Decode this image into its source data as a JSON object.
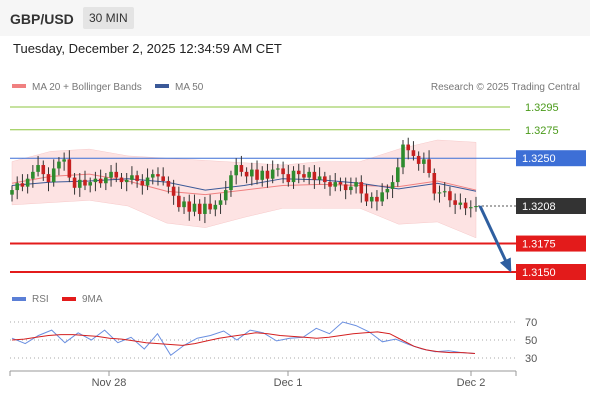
{
  "header": {
    "symbol": "GBP/USD",
    "timeframe": "30 MIN",
    "timestamp": "Tuesday, December 2, 2025 12:34:59 AM CET"
  },
  "legend": {
    "ma20": "MA 20 + Bollinger Bands",
    "ma50": "MA 50",
    "credit": "Research © 2025 Trading Central"
  },
  "rsi_legend": {
    "rsi": "RSI",
    "ma9": "9MA"
  },
  "colors": {
    "resistance": "#8dc63f",
    "pivot": "#3d6fd6",
    "support": "#e31b1b",
    "current": "#333333",
    "candle_up": "#2e8b2e",
    "candle_down": "#c62020",
    "bollinger": "#fde3e3",
    "ma20": "#f08080",
    "ma50": "#3b5998",
    "arrow": "#2f5fa0"
  },
  "chart_data": [
    {
      "type": "candlestick",
      "x_labels": [
        "Nov 28",
        "Dec 1",
        "Dec 2"
      ],
      "ylim": [
        1.3139,
        1.3307
      ],
      "levels": [
        {
          "value": 1.3295,
          "label": "1.3295",
          "kind": "resistance"
        },
        {
          "value": 1.3275,
          "label": "1.3275",
          "kind": "resistance"
        },
        {
          "value": 1.325,
          "label": "1.3250",
          "kind": "pivot"
        },
        {
          "value": 1.3208,
          "label": "1.3208",
          "kind": "current"
        },
        {
          "value": 1.3175,
          "label": "1.3175",
          "kind": "support"
        },
        {
          "value": 1.315,
          "label": "1.3150",
          "kind": "support"
        }
      ],
      "closes": [
        1.3222,
        1.3228,
        1.3225,
        1.3232,
        1.3238,
        1.3244,
        1.3236,
        1.3229,
        1.3241,
        1.3247,
        1.3249,
        1.3233,
        1.3224,
        1.3231,
        1.3226,
        1.3229,
        1.3232,
        1.3228,
        1.3233,
        1.3238,
        1.3233,
        1.3229,
        1.3231,
        1.3235,
        1.323,
        1.3226,
        1.3233,
        1.3236,
        1.3234,
        1.323,
        1.3225,
        1.3217,
        1.3207,
        1.3212,
        1.3203,
        1.321,
        1.3201,
        1.321,
        1.3205,
        1.3209,
        1.3213,
        1.3222,
        1.3235,
        1.3244,
        1.3238,
        1.3234,
        1.324,
        1.3231,
        1.3239,
        1.3232,
        1.324,
        1.3241,
        1.3236,
        1.3229,
        1.3239,
        1.3236,
        1.3233,
        1.3238,
        1.3231,
        1.3234,
        1.3229,
        1.3225,
        1.3229,
        1.3227,
        1.3222,
        1.3225,
        1.3229,
        1.3219,
        1.3212,
        1.3216,
        1.3212,
        1.322,
        1.3223,
        1.3229,
        1.3242,
        1.3262,
        1.3257,
        1.3252,
        1.3245,
        1.3249,
        1.3237,
        1.3219,
        1.322,
        1.3221,
        1.3213,
        1.3209,
        1.3211,
        1.3206,
        1.3207,
        1.3208
      ],
      "bollinger": {
        "upper": [
          1.3247,
          1.3256,
          1.3258,
          1.3252,
          1.325,
          1.3248,
          1.3246,
          1.3244,
          1.3247,
          1.3247,
          1.3258,
          1.3266,
          1.3264
        ],
        "lower": [
          1.3209,
          1.3211,
          1.3213,
          1.3208,
          1.3193,
          1.3189,
          1.3198,
          1.3206,
          1.3206,
          1.3206,
          1.3192,
          1.3194,
          1.318
        ]
      },
      "ma20": [
        1.3228,
        1.3234,
        1.3236,
        1.323,
        1.3221,
        1.3218,
        1.3222,
        1.3226,
        1.3227,
        1.3226,
        1.3225,
        1.323,
        1.3222
      ],
      "ma50": [
        1.3226,
        1.3229,
        1.323,
        1.3232,
        1.3229,
        1.3222,
        1.3226,
        1.3232,
        1.3231,
        1.3228,
        1.3223,
        1.3228,
        1.3221
      ],
      "forecast": {
        "from": 1.3208,
        "to": 1.315
      }
    },
    {
      "type": "line",
      "yticks": [
        70,
        50,
        30
      ],
      "ylim": [
        20,
        80
      ],
      "series": [
        {
          "name": "RSI",
          "values": [
            52,
            46,
            55,
            61,
            47,
            58,
            50,
            61,
            47,
            53,
            40,
            57,
            33,
            44,
            52,
            55,
            60,
            50,
            61,
            58,
            49,
            52,
            53,
            63,
            57,
            70,
            66,
            59,
            48,
            51,
            45,
            40,
            37,
            38,
            36,
            35
          ]
        },
        {
          "name": "9MA",
          "values": [
            50,
            51,
            53,
            55,
            56,
            56,
            55,
            54,
            52,
            51,
            49,
            47,
            46,
            45,
            44,
            46,
            49,
            52,
            54,
            56,
            58,
            57,
            55,
            54,
            53,
            52,
            53,
            55,
            57,
            58,
            59,
            57,
            50,
            43,
            39,
            37,
            36,
            36,
            35
          ]
        }
      ]
    }
  ]
}
